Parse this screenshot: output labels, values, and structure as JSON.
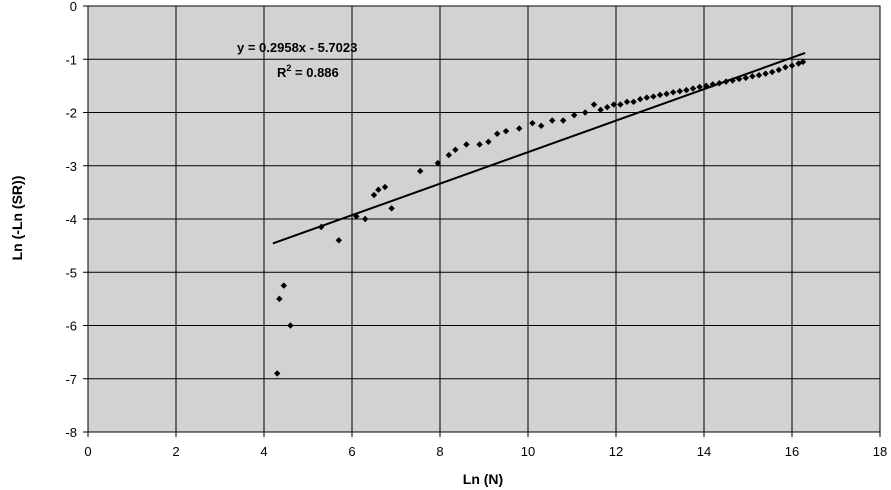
{
  "chart_data": {
    "type": "scatter",
    "xlabel": "Ln (N)",
    "ylabel": "Ln (-Ln (SR))",
    "xlim": [
      0,
      18
    ],
    "ylim": [
      -8,
      0
    ],
    "x_ticks": [
      "0",
      "2",
      "4",
      "6",
      "8",
      "10",
      "12",
      "14",
      "16",
      "18"
    ],
    "y_ticks": [
      "0",
      "-1",
      "-2",
      "-3",
      "-4",
      "-5",
      "-6",
      "-7",
      "-8"
    ],
    "grid": true,
    "background_color": "#d2d2d2",
    "marker_color": "#000000",
    "trendline": {
      "slope": 0.2958,
      "intercept": -5.7023,
      "x_range": [
        4.2,
        16.3
      ],
      "equation_text": "y = 0.2958x - 5.7023",
      "r2_label": "R",
      "r2_exponent": "2",
      "r2_value_text": " = 0.886"
    },
    "series": [
      {
        "points": [
          [
            4.3,
            -6.9
          ],
          [
            4.35,
            -5.5
          ],
          [
            4.45,
            -5.25
          ],
          [
            4.6,
            -6.0
          ],
          [
            5.3,
            -4.15
          ],
          [
            5.7,
            -4.4
          ],
          [
            6.1,
            -3.95
          ],
          [
            6.3,
            -4.0
          ],
          [
            6.5,
            -3.55
          ],
          [
            6.6,
            -3.45
          ],
          [
            6.75,
            -3.4
          ],
          [
            6.9,
            -3.8
          ],
          [
            7.55,
            -3.1
          ],
          [
            7.95,
            -2.95
          ],
          [
            8.2,
            -2.8
          ],
          [
            8.35,
            -2.7
          ],
          [
            8.6,
            -2.6
          ],
          [
            8.9,
            -2.6
          ],
          [
            9.1,
            -2.55
          ],
          [
            9.3,
            -2.4
          ],
          [
            9.5,
            -2.35
          ],
          [
            9.8,
            -2.3
          ],
          [
            10.1,
            -2.2
          ],
          [
            10.3,
            -2.25
          ],
          [
            10.55,
            -2.15
          ],
          [
            10.8,
            -2.15
          ],
          [
            11.05,
            -2.05
          ],
          [
            11.3,
            -2.0
          ],
          [
            11.5,
            -1.85
          ],
          [
            11.65,
            -1.95
          ],
          [
            11.8,
            -1.9
          ],
          [
            11.95,
            -1.85
          ],
          [
            12.1,
            -1.85
          ],
          [
            12.25,
            -1.8
          ],
          [
            12.4,
            -1.8
          ],
          [
            12.55,
            -1.75
          ],
          [
            12.7,
            -1.72
          ],
          [
            12.85,
            -1.7
          ],
          [
            13.0,
            -1.67
          ],
          [
            13.15,
            -1.65
          ],
          [
            13.3,
            -1.62
          ],
          [
            13.45,
            -1.6
          ],
          [
            13.6,
            -1.58
          ],
          [
            13.75,
            -1.55
          ],
          [
            13.9,
            -1.52
          ],
          [
            14.05,
            -1.5
          ],
          [
            14.2,
            -1.47
          ],
          [
            14.35,
            -1.45
          ],
          [
            14.5,
            -1.42
          ],
          [
            14.65,
            -1.4
          ],
          [
            14.8,
            -1.37
          ],
          [
            14.95,
            -1.35
          ],
          [
            15.1,
            -1.32
          ],
          [
            15.25,
            -1.3
          ],
          [
            15.4,
            -1.27
          ],
          [
            15.55,
            -1.24
          ],
          [
            15.7,
            -1.2
          ],
          [
            15.85,
            -1.15
          ],
          [
            16.0,
            -1.12
          ],
          [
            16.15,
            -1.08
          ],
          [
            16.25,
            -1.05
          ]
        ]
      }
    ]
  }
}
